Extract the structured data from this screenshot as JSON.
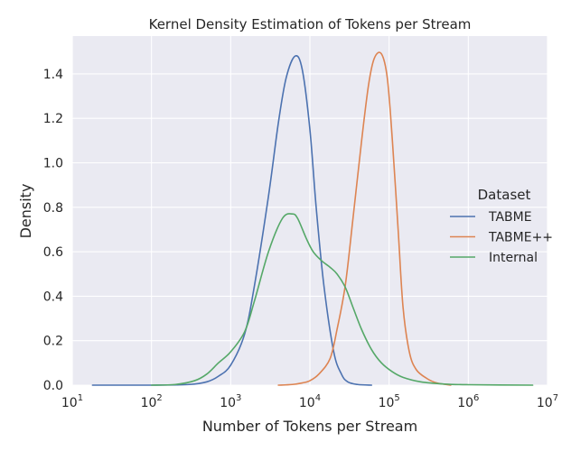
{
  "chart_data": {
    "type": "line",
    "title": "Kernel Density Estimation of Tokens per Stream",
    "xlabel": "Number of Tokens per Stream",
    "ylabel": "Density",
    "xscale": "log",
    "xlim": [
      10,
      10000000
    ],
    "ylim": [
      0,
      1.57
    ],
    "x_ticks": [
      {
        "value": 10,
        "base": "10",
        "exp": "1"
      },
      {
        "value": 100,
        "base": "10",
        "exp": "2"
      },
      {
        "value": 1000,
        "base": "10",
        "exp": "3"
      },
      {
        "value": 10000,
        "base": "10",
        "exp": "4"
      },
      {
        "value": 100000,
        "base": "10",
        "exp": "5"
      },
      {
        "value": 1000000,
        "base": "10",
        "exp": "6"
      },
      {
        "value": 10000000,
        "base": "10",
        "exp": "7"
      }
    ],
    "y_ticks": [
      {
        "value": 0.0,
        "label": "0.0"
      },
      {
        "value": 0.2,
        "label": "0.2"
      },
      {
        "value": 0.4,
        "label": "0.4"
      },
      {
        "value": 0.6,
        "label": "0.6"
      },
      {
        "value": 0.8,
        "label": "0.8"
      },
      {
        "value": 1.0,
        "label": "1.0"
      },
      {
        "value": 1.2,
        "label": "1.2"
      },
      {
        "value": 1.4,
        "label": "1.4"
      }
    ],
    "grid": true,
    "background": "#eaeaf2",
    "legend": {
      "title": "Dataset",
      "placement": "center-right"
    },
    "series": [
      {
        "name": "TABME",
        "color": "#4c72b0",
        "points": [
          [
            18,
            0
          ],
          [
            100,
            0
          ],
          [
            300,
            0.003
          ],
          [
            500,
            0.015
          ],
          [
            700,
            0.04
          ],
          [
            1000,
            0.09
          ],
          [
            1500,
            0.23
          ],
          [
            2000,
            0.45
          ],
          [
            3000,
            0.85
          ],
          [
            4000,
            1.18
          ],
          [
            5000,
            1.38
          ],
          [
            6500,
            1.48
          ],
          [
            8000,
            1.42
          ],
          [
            10000,
            1.15
          ],
          [
            12000,
            0.8
          ],
          [
            15000,
            0.45
          ],
          [
            20000,
            0.15
          ],
          [
            25000,
            0.05
          ],
          [
            30000,
            0.015
          ],
          [
            40000,
            0.003
          ],
          [
            60000,
            0
          ]
        ]
      },
      {
        "name": "TABME++",
        "color": "#dd8452",
        "points": [
          [
            4000,
            0
          ],
          [
            6000,
            0.003
          ],
          [
            8000,
            0.01
          ],
          [
            10000,
            0.02
          ],
          [
            13000,
            0.05
          ],
          [
            18000,
            0.12
          ],
          [
            22000,
            0.25
          ],
          [
            28000,
            0.45
          ],
          [
            35000,
            0.75
          ],
          [
            45000,
            1.1
          ],
          [
            55000,
            1.35
          ],
          [
            65000,
            1.47
          ],
          [
            80000,
            1.49
          ],
          [
            95000,
            1.38
          ],
          [
            110000,
            1.1
          ],
          [
            130000,
            0.7
          ],
          [
            150000,
            0.35
          ],
          [
            180000,
            0.15
          ],
          [
            220000,
            0.07
          ],
          [
            300000,
            0.03
          ],
          [
            400000,
            0.01
          ],
          [
            600000,
            0
          ]
        ]
      },
      {
        "name": "Internal",
        "color": "#55a868",
        "points": [
          [
            100,
            0
          ],
          [
            200,
            0.003
          ],
          [
            350,
            0.02
          ],
          [
            500,
            0.05
          ],
          [
            700,
            0.1
          ],
          [
            1000,
            0.15
          ],
          [
            1500,
            0.24
          ],
          [
            2000,
            0.38
          ],
          [
            3000,
            0.6
          ],
          [
            4500,
            0.75
          ],
          [
            6000,
            0.77
          ],
          [
            7000,
            0.75
          ],
          [
            9000,
            0.66
          ],
          [
            11000,
            0.6
          ],
          [
            14000,
            0.56
          ],
          [
            18000,
            0.53
          ],
          [
            22000,
            0.5
          ],
          [
            28000,
            0.44
          ],
          [
            35000,
            0.35
          ],
          [
            45000,
            0.25
          ],
          [
            60000,
            0.16
          ],
          [
            80000,
            0.1
          ],
          [
            110000,
            0.06
          ],
          [
            150000,
            0.035
          ],
          [
            250000,
            0.015
          ],
          [
            500000,
            0.005
          ],
          [
            1000000,
            0.002
          ],
          [
            6500000,
            0
          ]
        ]
      }
    ]
  }
}
